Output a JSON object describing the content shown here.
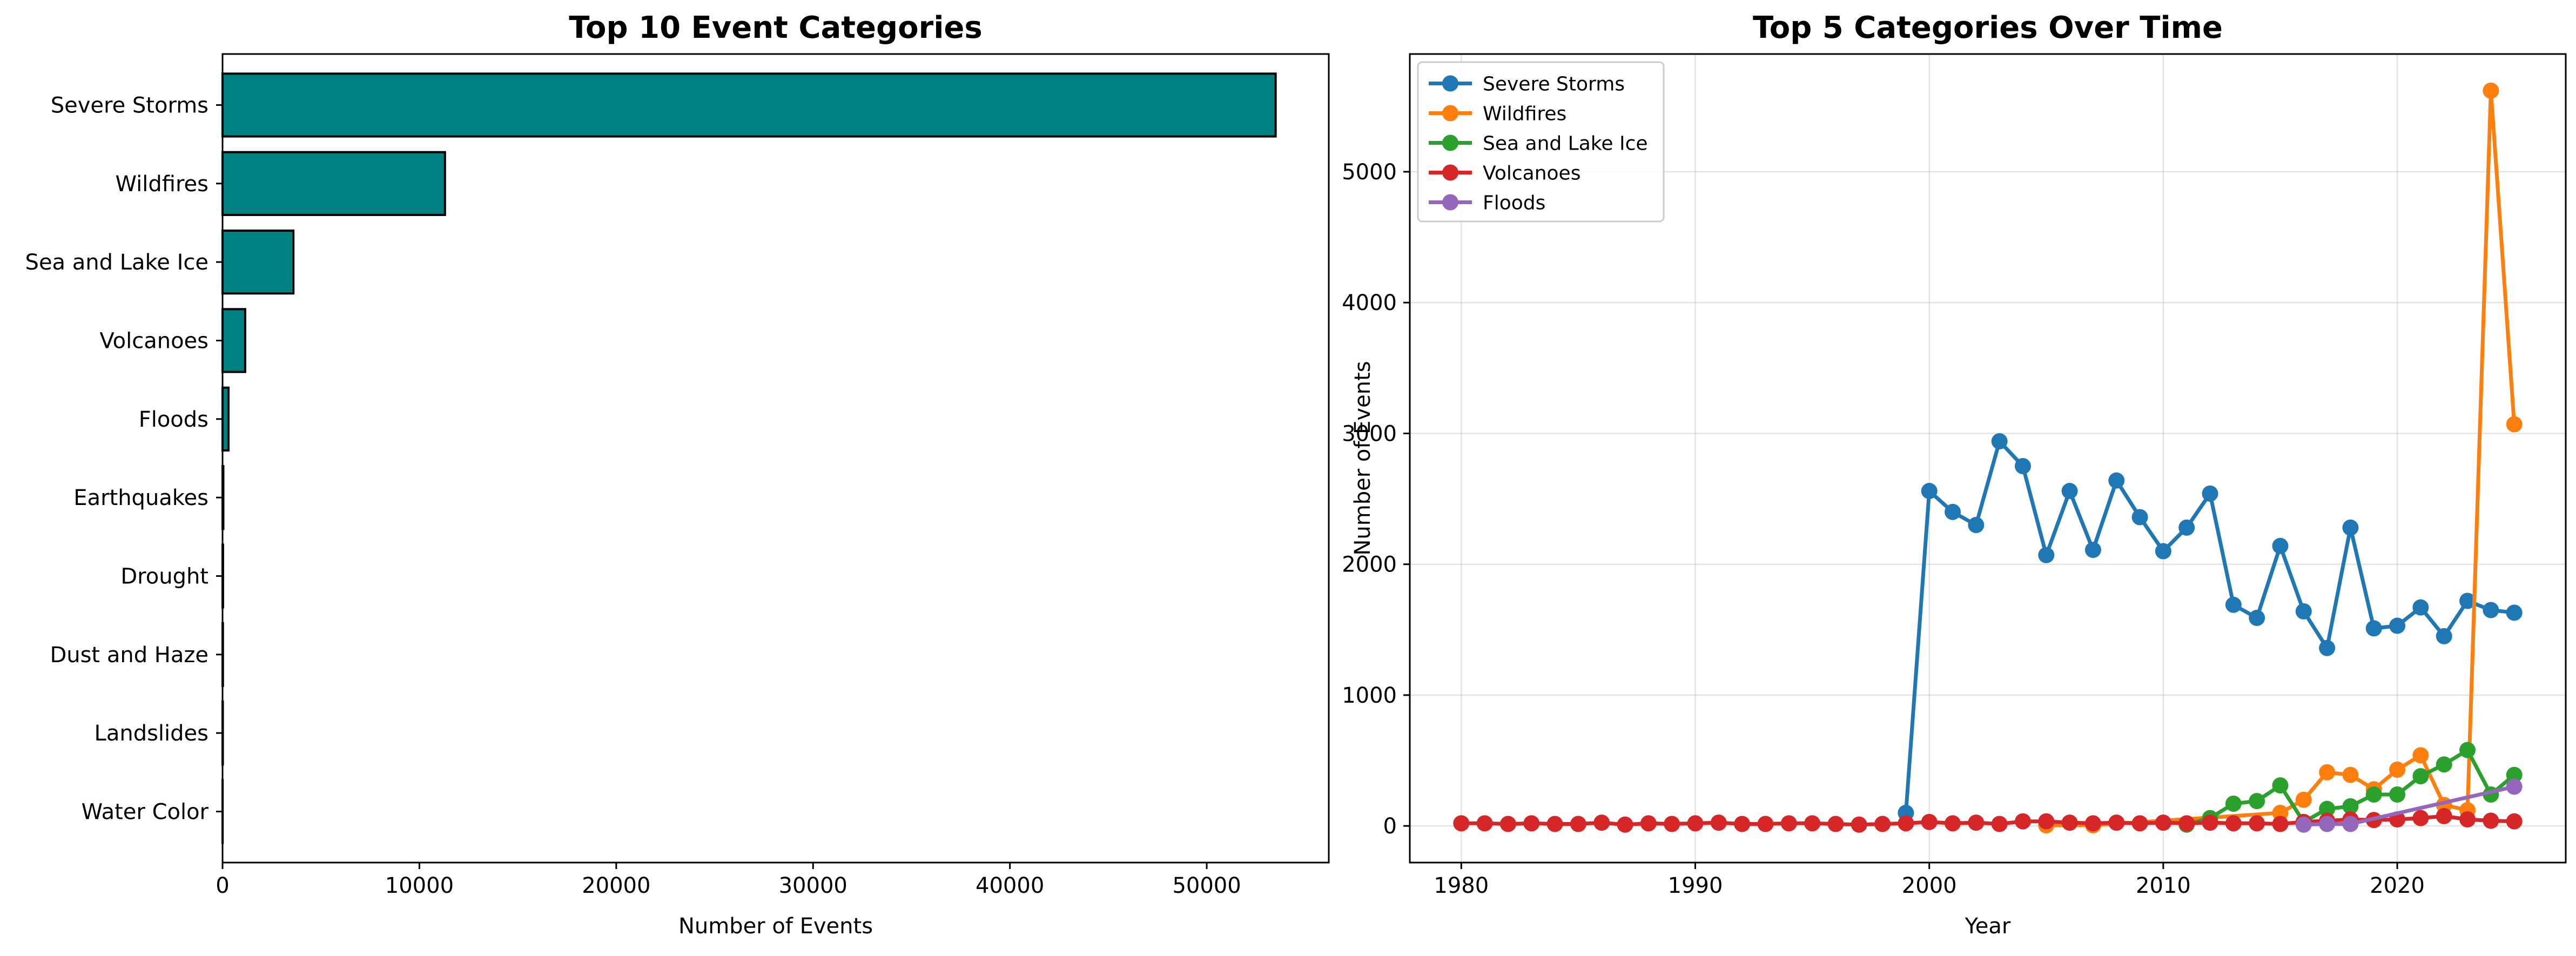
{
  "chart_data": [
    {
      "type": "bar",
      "orientation": "horizontal",
      "title": "Top 10 Event Categories",
      "xlabel": "Number of Events",
      "ylabel": "",
      "categories": [
        "Severe Storms",
        "Wildfires",
        "Sea and Lake Ice",
        "Volcanoes",
        "Floods",
        "Earthquakes",
        "Drought",
        "Dust and Haze",
        "Landslides",
        "Water Color"
      ],
      "values": [
        53500,
        11300,
        3600,
        1150,
        300,
        40,
        25,
        20,
        15,
        5
      ],
      "xlim": [
        0,
        56200
      ],
      "xticks": [
        0,
        10000,
        20000,
        30000,
        40000,
        50000
      ],
      "bar_color": "#008080",
      "edge_color": "#000000",
      "grid": false
    },
    {
      "type": "line",
      "title": "Top 5 Categories Over Time",
      "xlabel": "Year",
      "ylabel": "Number of Events",
      "xlim": [
        1977.8,
        2027.2
      ],
      "ylim": [
        -280,
        5900
      ],
      "xticks": [
        1980,
        1990,
        2000,
        2010,
        2020
      ],
      "yticks": [
        0,
        1000,
        2000,
        3000,
        4000,
        5000
      ],
      "grid": true,
      "legend_position": "top-left",
      "series": [
        {
          "name": "Severe Storms",
          "color": "#1f77b4",
          "x": [
            1999,
            2000,
            2001,
            2002,
            2003,
            2004,
            2005,
            2006,
            2007,
            2008,
            2009,
            2010,
            2011,
            2012,
            2013,
            2014,
            2015,
            2016,
            2017,
            2018,
            2019,
            2020,
            2021,
            2022,
            2023,
            2024,
            2025
          ],
          "y": [
            100,
            2560,
            2400,
            2300,
            2940,
            2750,
            2070,
            2560,
            2110,
            2640,
            2360,
            2100,
            2280,
            2540,
            1690,
            1590,
            2140,
            1640,
            1360,
            2280,
            1510,
            1530,
            1670,
            1450,
            1720,
            1650,
            1630
          ]
        },
        {
          "name": "Wildfires",
          "color": "#ff7f0e",
          "x": [
            2005,
            2007,
            2015,
            2016,
            2017,
            2018,
            2019,
            2020,
            2021,
            2022,
            2023,
            2024,
            2025
          ],
          "y": [
            5,
            5,
            100,
            200,
            410,
            390,
            280,
            430,
            540,
            160,
            120,
            5620,
            3070
          ]
        },
        {
          "name": "Sea and Lake Ice",
          "color": "#2ca02c",
          "x": [
            2011,
            2012,
            2013,
            2014,
            2015,
            2016,
            2017,
            2018,
            2019,
            2020,
            2021,
            2022,
            2023,
            2024,
            2025
          ],
          "y": [
            10,
            60,
            170,
            190,
            310,
            30,
            130,
            150,
            240,
            240,
            380,
            470,
            580,
            240,
            390
          ]
        },
        {
          "name": "Volcanoes",
          "color": "#d62728",
          "x": [
            1980,
            1981,
            1982,
            1983,
            1984,
            1985,
            1986,
            1987,
            1988,
            1989,
            1990,
            1991,
            1992,
            1993,
            1994,
            1995,
            1996,
            1997,
            1998,
            1999,
            2000,
            2001,
            2002,
            2003,
            2004,
            2005,
            2006,
            2007,
            2008,
            2009,
            2010,
            2011,
            2012,
            2013,
            2014,
            2015,
            2016,
            2017,
            2018,
            2019,
            2020,
            2021,
            2022,
            2023,
            2024,
            2025
          ],
          "y": [
            20,
            20,
            15,
            20,
            15,
            15,
            25,
            10,
            20,
            15,
            20,
            25,
            15,
            15,
            20,
            20,
            15,
            10,
            15,
            20,
            30,
            20,
            25,
            15,
            35,
            35,
            25,
            20,
            25,
            20,
            25,
            20,
            25,
            20,
            20,
            15,
            30,
            40,
            50,
            45,
            50,
            60,
            75,
            50,
            40,
            35
          ]
        },
        {
          "name": "Floods",
          "color": "#9467bd",
          "x": [
            2016,
            2017,
            2018,
            2025
          ],
          "y": [
            10,
            15,
            15,
            300
          ]
        }
      ]
    }
  ]
}
